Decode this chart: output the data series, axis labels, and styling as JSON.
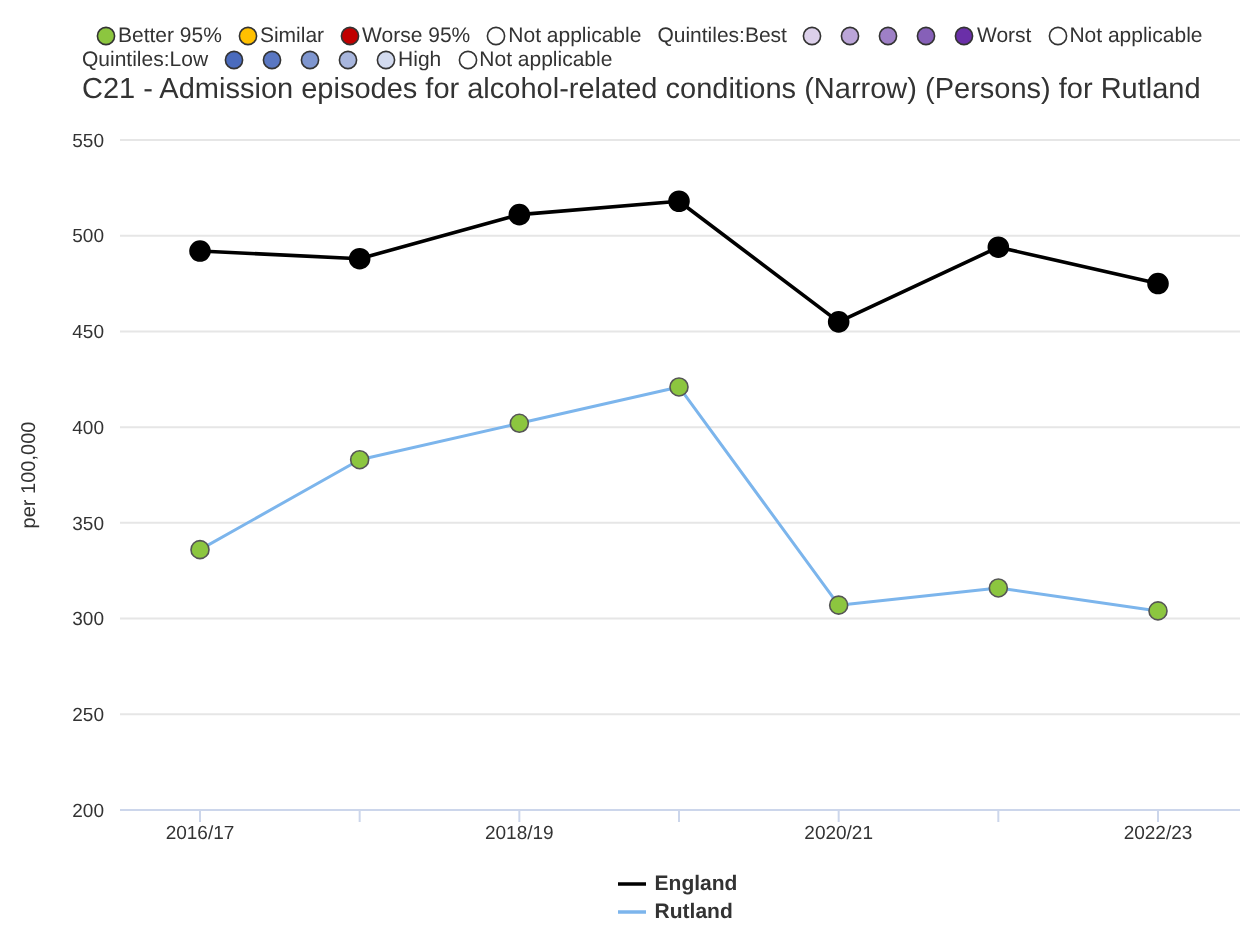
{
  "chart_data": {
    "type": "line",
    "title": "C21 - Admission episodes for alcohol-related conditions (Narrow) (Persons) for Rutland",
    "ylabel": "per 100,000",
    "annotations": [
      "Better 95%",
      "Similar",
      "Worse 95%",
      "Not applicable",
      "Quintiles:Best",
      "Worst",
      "Not applicable",
      "Quintiles:Low",
      "High",
      "Not applicable"
    ],
    "categories": [
      "2016/17",
      null,
      "2018/19",
      null,
      "2020/21",
      null,
      "2022/23"
    ],
    "series": [
      {
        "name": "England",
        "color": "#000000",
        "values": [
          492,
          488,
          511,
          518,
          455,
          494,
          475
        ]
      },
      {
        "name": "Rutland",
        "color": "#7cb5ec",
        "colors": [
          "#8cc63f",
          "#8cc63f",
          "#8cc63f",
          "#8cc63f",
          "#8cc63f",
          "#8cc63f",
          "#8cc63f"
        ],
        "values": [
          336,
          383,
          402,
          421,
          307,
          316,
          304
        ]
      }
    ],
    "ylim": [
      200,
      550
    ],
    "yticks": [
      200,
      250,
      300,
      350,
      400,
      450,
      500,
      550
    ],
    "grid": "y",
    "legend": "bottom",
    "marker": "circle",
    "line_style": "solid"
  }
}
